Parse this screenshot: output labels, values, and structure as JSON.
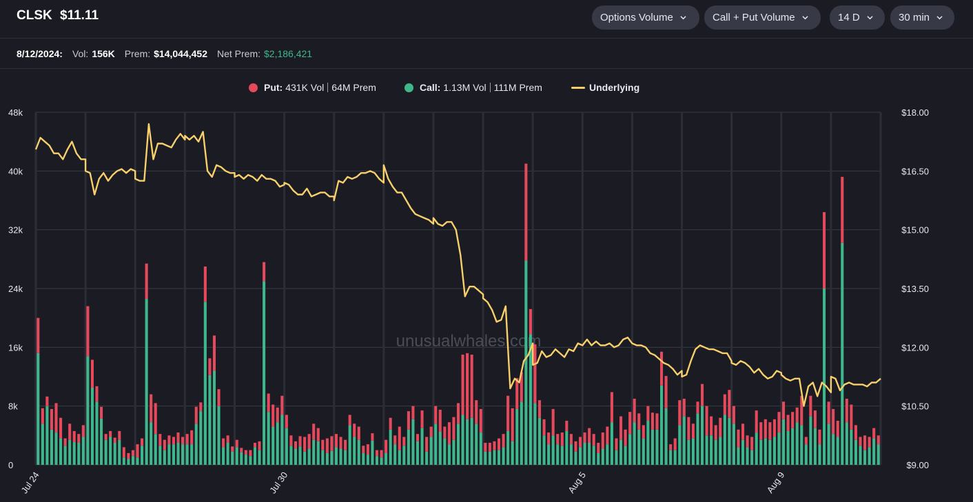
{
  "header": {
    "symbol": "CLSK",
    "price": "$11.11",
    "dropdowns": [
      {
        "label": "Options Volume"
      },
      {
        "label": "Call + Put Volume"
      },
      {
        "label": "14 D"
      },
      {
        "label": "30 min"
      }
    ]
  },
  "summary": {
    "date": "8/12/2024:",
    "vol_label": "Vol:",
    "vol_value": "156K",
    "prem_label": "Prem:",
    "prem_value": "$14,044,452",
    "net_prem_label": "Net Prem:",
    "net_prem_value": "$2,186,421"
  },
  "legend": {
    "put_name": "Put:",
    "put_vol": "431K Vol",
    "put_prem": "64M Prem",
    "call_name": "Call:",
    "call_vol": "1.13M Vol",
    "call_prem": "111M Prem",
    "underlying_name": "Underlying"
  },
  "watermark": "unusualwhales.com",
  "colors": {
    "put": "#e5495c",
    "call": "#3fb68b",
    "underlying": "#f7cf6b",
    "background": "#1b1c23",
    "grid": "#3a3c45"
  },
  "chart_data": {
    "type": "bar",
    "stacked": true,
    "left_axis": {
      "ticks": [
        "0",
        "8k",
        "16k",
        "24k",
        "32k",
        "40k",
        "48k"
      ],
      "range": [
        0,
        48000
      ]
    },
    "right_axis": {
      "ticks": [
        "$9.00",
        "$10.50",
        "$12.00",
        "$13.50",
        "$15.00",
        "$16.50",
        "$18.00"
      ],
      "range": [
        9,
        18
      ]
    },
    "x_tick_labels": [
      "Jul 24",
      "Jul 30",
      "Aug 5",
      "Aug 9"
    ],
    "grid": true,
    "legend_position": "top-center",
    "days": [
      {
        "call": [
          15200,
          5600,
          8000,
          4800,
          4400,
          3600,
          2600,
          3400,
          3100,
          3000,
          3800
        ],
        "put": [
          4800,
          2100,
          1300,
          2800,
          4000,
          2800,
          1000,
          2200,
          1500,
          1200,
          1600
        ],
        "price": [
          17.05,
          17.35,
          17.25,
          17.15,
          16.95,
          16.95,
          16.8,
          17.05,
          17.25,
          16.95,
          16.8,
          16.8
        ]
      },
      {
        "call": [
          14800,
          10500,
          8600,
          6300,
          3400,
          3800,
          3000,
          3400,
          1000,
          800,
          1200
        ],
        "put": [
          6800,
          3800,
          2100,
          1600,
          800,
          800,
          700,
          1200,
          1400,
          800,
          800
        ],
        "price": [
          16.5,
          16.45,
          15.9,
          16.3,
          16.45,
          16.25,
          16.4,
          16.5,
          16.55,
          16.45,
          16.55,
          16.5
        ]
      },
      {
        "call": [
          1000,
          2600,
          22600,
          5800,
          4200,
          2600,
          2000,
          2800,
          2800,
          3000,
          2800
        ],
        "put": [
          1800,
          1000,
          4800,
          3800,
          4200,
          1600,
          1400,
          1200,
          1000,
          1400,
          1000
        ],
        "price": [
          16.3,
          16.25,
          16.25,
          17.7,
          16.8,
          17.2,
          17.2,
          17.15,
          17.1,
          17.3,
          17.45,
          17.3
        ]
      },
      {
        "call": [
          2800,
          2800,
          5600,
          7300,
          22200,
          12200,
          12800,
          8000,
          2400,
          3000,
          1800
        ],
        "put": [
          1400,
          1900,
          2300,
          1200,
          4800,
          2300,
          4800,
          2300,
          1200,
          1000,
          700
        ],
        "price": [
          17.4,
          17.3,
          17.4,
          17.25,
          17.5,
          16.5,
          16.35,
          16.65,
          16.6,
          16.5,
          16.45,
          16.45
        ]
      },
      {
        "call": [
          2400,
          1700,
          1400,
          1200,
          2400,
          2000,
          25000,
          7200,
          5200,
          5800,
          6800
        ],
        "put": [
          1000,
          600,
          600,
          800,
          600,
          1200,
          2600,
          2500,
          3000,
          2000,
          2600
        ],
        "price": [
          16.35,
          16.4,
          16.3,
          16.4,
          16.35,
          16.25,
          16.4,
          16.3,
          16.3,
          16.25,
          16.1,
          16.15
        ]
      },
      {
        "call": [
          5000,
          2600,
          2200,
          2500,
          1800,
          2200,
          3400,
          3200,
          2000,
          1600,
          1900
        ],
        "put": [
          1800,
          1400,
          1000,
          1400,
          2000,
          2000,
          2200,
          1800,
          1400,
          2000,
          2000
        ],
        "price": [
          16.2,
          16.15,
          16.0,
          15.9,
          15.9,
          16.05,
          15.85,
          15.9,
          15.95,
          15.95,
          15.85,
          15.85
        ]
      },
      {
        "call": [
          2400,
          2200,
          2000,
          5400,
          3800,
          3400,
          1600,
          1400,
          3300,
          1200,
          1000
        ],
        "put": [
          1800,
          1600,
          1400,
          1400,
          1800,
          1800,
          1000,
          1400,
          1000,
          800,
          1000
        ],
        "price": [
          15.75,
          16.25,
          16.2,
          16.35,
          16.3,
          16.35,
          16.45,
          16.45,
          16.5,
          16.45,
          16.3,
          16.2
        ]
      },
      {
        "call": [
          1600,
          4800,
          2800,
          2000,
          2600,
          4800,
          6200,
          3200,
          5000,
          1800,
          3800
        ],
        "put": [
          1800,
          1600,
          1200,
          3200,
          1200,
          2500,
          1800,
          1000,
          2400,
          2000,
          1400
        ],
        "price": [
          16.65,
          16.3,
          16.1,
          15.95,
          15.95,
          15.75,
          15.55,
          15.4,
          15.35,
          15.3,
          15.25,
          15.15
        ]
      },
      {
        "call": [
          5600,
          4500,
          3600,
          2800,
          3400,
          5600,
          6800,
          6200,
          6400,
          5600,
          4400
        ],
        "put": [
          2400,
          3000,
          1600,
          3000,
          3100,
          2800,
          8200,
          9000,
          8600,
          3200,
          3200
        ],
        "price": [
          15.3,
          15.15,
          15.1,
          15.2,
          15.2,
          15.0,
          14.35,
          13.3,
          13.55,
          13.55,
          13.45,
          13.35
        ]
      },
      {
        "call": [
          1800,
          1800,
          2000,
          2000,
          2400,
          4600,
          3200,
          7600,
          8600,
          27800,
          17800
        ],
        "put": [
          1200,
          1200,
          1200,
          1600,
          1800,
          4800,
          4500,
          4200,
          4000,
          13200,
          3400
        ],
        "price": [
          13.25,
          13.15,
          12.95,
          12.65,
          12.7,
          13.05,
          10.95,
          11.2,
          11.1,
          11.65,
          11.8,
          12.1
        ]
      },
      {
        "call": [
          8400,
          6400,
          4000,
          2800,
          4000,
          2800,
          2600,
          4600,
          2800,
          1800,
          2400
        ],
        "put": [
          8000,
          2400,
          2200,
          1600,
          3600,
          1400,
          1800,
          1400,
          1400,
          1400,
          1400
        ],
        "price": [
          11.55,
          11.6,
          11.9,
          11.75,
          11.8,
          11.95,
          11.85,
          11.75,
          11.95,
          11.9,
          12.1,
          12.05
        ]
      },
      {
        "call": [
          3000,
          3000,
          2600,
          1600,
          2200,
          2800,
          5800,
          2000,
          3400,
          2600,
          4200
        ],
        "put": [
          1400,
          2000,
          1600,
          1400,
          2200,
          2400,
          4100,
          1600,
          3200,
          2200,
          3000
        ],
        "price": [
          12.05,
          12.2,
          12.05,
          12.15,
          12.05,
          12.05,
          12.1,
          12.0,
          12.05,
          12.2,
          12.25,
          12.1
        ]
      },
      {
        "call": [
          5800,
          4800,
          3600,
          6000,
          4800,
          4800,
          10800,
          7700,
          2000,
          2000,
          5400
        ],
        "put": [
          3200,
          2200,
          1800,
          2000,
          2300,
          2200,
          4600,
          4400,
          800,
          1600,
          3400
        ],
        "price": [
          12.1,
          12.05,
          12.05,
          12.0,
          11.85,
          11.8,
          11.7,
          11.6,
          11.55,
          11.45,
          11.3,
          11.4
        ]
      },
      {
        "call": [
          6600,
          3400,
          3600,
          7000,
          8000,
          4000,
          4000,
          3400,
          3800,
          6800,
          6400
        ],
        "put": [
          2400,
          3100,
          2000,
          1600,
          3000,
          4000,
          2600,
          2000,
          2600,
          2800,
          3800
        ],
        "price": [
          11.25,
          11.3,
          11.65,
          11.95,
          12.05,
          12.0,
          11.95,
          11.95,
          11.9,
          11.85,
          11.85,
          11.65
        ]
      },
      {
        "call": [
          5600,
          2400,
          3400,
          2400,
          2000,
          4400,
          3400,
          3600,
          3400,
          3800,
          4400
        ],
        "put": [
          2400,
          2400,
          2200,
          1600,
          1800,
          3000,
          2400,
          2600,
          2400,
          2400,
          2800
        ],
        "price": [
          11.6,
          11.55,
          11.65,
          11.6,
          11.5,
          11.35,
          11.45,
          11.3,
          11.2,
          11.25,
          11.4,
          11.35
        ]
      },
      {
        "call": [
          6200,
          4600,
          5000,
          5800,
          5400,
          2800,
          6600,
          5000,
          2800,
          24000,
          5600
        ],
        "put": [
          2400,
          2200,
          2200,
          2000,
          4000,
          1000,
          2800,
          2400,
          2000,
          10400,
          3000
        ],
        "price": [
          11.3,
          11.2,
          11.15,
          11.2,
          11.2,
          10.5,
          11.0,
          11.1,
          10.75,
          11.1,
          11.0,
          10.85
        ]
      },
      {
        "call": [
          4200,
          3800,
          30200,
          5800,
          4800,
          3400,
          2600,
          2000,
          2400,
          3600,
          2800
        ],
        "put": [
          3400,
          2200,
          9000,
          3200,
          3400,
          2000,
          1200,
          2000,
          1400,
          1400,
          1200
        ],
        "price": [
          11.25,
          11.2,
          10.9,
          11.05,
          11.1,
          11.05,
          11.05,
          11.05,
          11.0,
          11.1,
          11.1,
          11.2
        ]
      }
    ]
  }
}
